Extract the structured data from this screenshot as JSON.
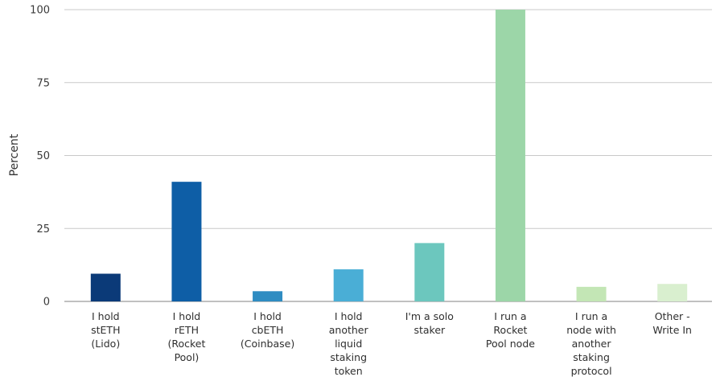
{
  "chart_data": {
    "type": "bar",
    "ylabel": "Percent",
    "xlabel": "",
    "ylim": [
      0,
      100
    ],
    "yticks": [
      0,
      25,
      50,
      75,
      100
    ],
    "grid": true,
    "legend": "none",
    "categories": [
      "I hold stETH (Lido)",
      "I hold rETH (Rocket Pool)",
      "I hold cbETH (Coinbase)",
      "I hold another liquid staking token",
      "I'm a solo staker",
      "I run a Rocket Pool node",
      "I run a node with another staking protocol",
      "Other - Write In"
    ],
    "category_lines": [
      [
        "I hold",
        "stETH",
        "(Lido)"
      ],
      [
        "I hold",
        "rETH",
        "(Rocket",
        "Pool)"
      ],
      [
        "I hold",
        "cbETH",
        "(Coinbase)"
      ],
      [
        "I hold",
        "another",
        "liquid",
        "staking",
        "token"
      ],
      [
        "I'm a solo",
        "staker"
      ],
      [
        "I run a",
        "Rocket",
        "Pool node"
      ],
      [
        "I run a",
        "node with",
        "another",
        "staking",
        "protocol"
      ],
      [
        "Other -",
        "Write In"
      ]
    ],
    "values": [
      9.5,
      41,
      3.5,
      11,
      20,
      100,
      5,
      6
    ],
    "colors": [
      "#0b3a78",
      "#0e5ea6",
      "#2f8cc2",
      "#4aaed6",
      "#6cc7be",
      "#9cd6a8",
      "#c3e6b5",
      "#d9efcf"
    ]
  }
}
